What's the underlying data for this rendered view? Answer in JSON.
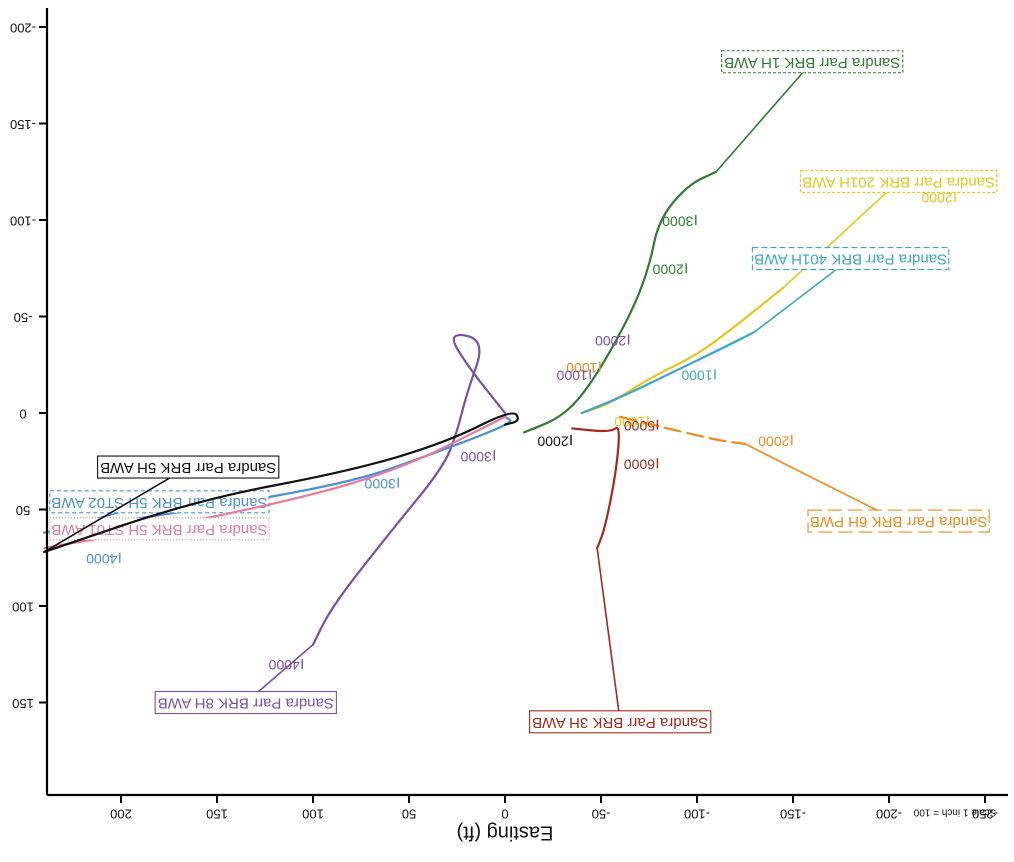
{
  "chart_data": {
    "type": "line",
    "title": "",
    "xlabel": "Easting (ft)",
    "ylabel": "",
    "scale_note": "Scale 1 inch = 100",
    "orientation": "rotated-180",
    "xlim": [
      -255,
      240
    ],
    "ylim": [
      -215,
      200
    ],
    "x_ticks": [
      -250,
      -200,
      -150,
      -100,
      -50,
      0,
      50,
      100,
      150,
      200
    ],
    "y_ticks": [
      -200,
      -150,
      -100,
      -50,
      0,
      50,
      100,
      150
    ],
    "x_tick_labels": [
      "-250",
      "-200",
      "-150",
      "-100",
      "-50",
      "0",
      "50",
      "100",
      "150",
      "200"
    ],
    "y_tick_labels": [
      "-200",
      "-150",
      "-100",
      "-50",
      "0",
      "50",
      "100",
      "150"
    ],
    "grid": false,
    "legend": "none",
    "series": [
      {
        "name": "Sandra Parr BRK 1H AWB",
        "color": "#2e7d32",
        "points": [
          [
            -10,
            10
          ],
          [
            -30,
            2
          ],
          [
            -45,
            -15
          ],
          [
            -65,
            -50
          ],
          [
            -75,
            -75
          ],
          [
            -80,
            -100
          ],
          [
            -95,
            -118
          ],
          [
            -110,
            -125
          ]
        ],
        "labels": [
          {
            "text": "2000",
            "x": -85,
            "y": -75
          },
          {
            "text": "3000",
            "x": -90,
            "y": -100
          }
        ],
        "box_anchor": [
          -160,
          -182
        ],
        "box_dash": "3,2"
      },
      {
        "name": "Sandra Parr BRK 201H AWB",
        "color": "#e6c619",
        "points": [
          [
            -40,
            0
          ],
          [
            -55,
            -5
          ],
          [
            -75,
            -18
          ],
          [
            -100,
            -30
          ],
          [
            -120,
            -45
          ],
          [
            -145,
            -65
          ]
        ],
        "labels": [
          {
            "text": "1000",
            "x": -65,
            "y": 4
          },
          {
            "text": "2000",
            "x": -225,
            "y": -112
          }
        ],
        "box_anchor": [
          -205,
          -120
        ],
        "box_dash": "3,2"
      },
      {
        "name": "Sandra Parr BRK 401H AWB",
        "color": "#3aa6c8",
        "points": [
          [
            -40,
            0
          ],
          [
            -60,
            -8
          ],
          [
            -85,
            -20
          ],
          [
            -110,
            -32
          ],
          [
            -130,
            -42
          ]
        ],
        "labels": [
          {
            "text": "1000",
            "x": -100,
            "y": -20
          }
        ],
        "box_anchor": [
          -180,
          -80
        ],
        "box_dash": "6,3"
      },
      {
        "name": "Sandra Parr BRK 6H PWB",
        "color": "#f08a1c",
        "points": [
          [
            -60,
            2
          ],
          [
            -85,
            8
          ],
          [
            -110,
            14
          ],
          [
            -125,
            16
          ]
        ],
        "labels": [
          {
            "text": "1000",
            "x": -40,
            "y": -24
          },
          {
            "text": "2000",
            "x": -140,
            "y": 14
          }
        ],
        "box_anchor": [
          -205,
          56
        ],
        "box_dash": "14,6"
      },
      {
        "name": "Sandra Parr BRK 3H AWB",
        "color": "#a52a1c",
        "points": [
          [
            -35,
            8
          ],
          [
            -55,
            10
          ],
          [
            -60,
            6
          ],
          [
            -58,
            30
          ],
          [
            -52,
            60
          ],
          [
            -48,
            70
          ]
        ],
        "labels": [
          {
            "text": "5000",
            "x": -70,
            "y": 6
          },
          {
            "text": "6000",
            "x": -70,
            "y": 26
          }
        ],
        "box_anchor": [
          -60,
          160
        ],
        "box_dash": ""
      },
      {
        "name": "Sandra Parr BRK 8H AWB",
        "color": "#7b4fa5",
        "points": [
          [
            0,
            0
          ],
          [
            20,
            -25
          ],
          [
            30,
            -42
          ],
          [
            10,
            -38
          ],
          [
            20,
            -10
          ],
          [
            25,
            10
          ],
          [
            32,
            28
          ],
          [
            60,
            62
          ],
          [
            90,
            100
          ],
          [
            100,
            120
          ]
        ],
        "labels": [
          {
            "text": "2000",
            "x": -55,
            "y": -38
          },
          {
            "text": "1000",
            "x": -35,
            "y": -20
          },
          {
            "text": "3000",
            "x": 15,
            "y": 22
          },
          {
            "text": "4000",
            "x": 115,
            "y": 130
          }
        ],
        "box_anchor": [
          135,
          150
        ],
        "box_dash": ""
      },
      {
        "name": "Sandra Parr BRK 5H ST02 AWB",
        "color": "#4a90d9",
        "points": [
          [
            0,
            2
          ],
          [
            -5,
            5
          ],
          [
            40,
            22
          ],
          [
            80,
            36
          ],
          [
            160,
            50
          ],
          [
            240,
            62
          ]
        ],
        "labels": [
          {
            "text": "3000",
            "x": 65,
            "y": 36
          },
          {
            "text": "4000",
            "x": 210,
            "y": 75
          }
        ],
        "box_anchor": [
          180,
          46
        ],
        "box_dash": "4,3"
      },
      {
        "name": "Sandra Parr BRK 5H ST01 AWB",
        "color": "#e87a9c",
        "points": [
          [
            0,
            2
          ],
          [
            60,
            32
          ],
          [
            140,
            52
          ],
          [
            240,
            70
          ]
        ],
        "labels": [],
        "box_anchor": [
          180,
          60
        ],
        "box_dash": "1,2"
      },
      {
        "name": "Sandra Parr BRK 5H AWB",
        "color": "#111111",
        "points": [
          [
            0,
            6
          ],
          [
            -8,
            4
          ],
          [
            -4,
            -2
          ],
          [
            30,
            15
          ],
          [
            80,
            30
          ],
          [
            160,
            45
          ],
          [
            240,
            72
          ]
        ],
        "labels": [
          {
            "text": "2000",
            "x": -25,
            "y": 14
          }
        ],
        "box_anchor": [
          165,
          28
        ],
        "box_dash": ""
      }
    ]
  }
}
